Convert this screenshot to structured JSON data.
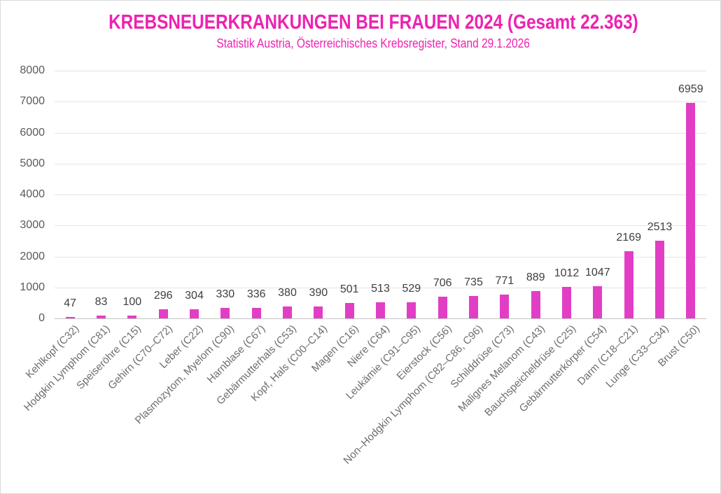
{
  "chart_data": {
    "type": "bar",
    "title": "KREBSNEUERKRANKUNGEN BEI FRAUEN 2024 (Gesamt 22.363)",
    "subtitle": "Statistik Austria, Österreichisches Krebsregister, Stand 29.1.2026",
    "categories": [
      "Kehlkopf (C32)",
      "Hodgkin Lymphom (C81)",
      "Speiseröhre (C15)",
      "Gehirn (C70–C72)",
      "Leber (C22)",
      "Plasmozytom, Myelom (C90)",
      "Harnblase (C67)",
      "Gebärmutterhals (C53)",
      "Kopf, Hals (C00–C14)",
      "Magen (C16)",
      "Niere (C64)",
      "Leukämie (C91–C95)",
      "Eierstock (C56)",
      "Non–Hodgkin Lymphom (C82–C86, C96)",
      "Schilddrüse (C73)",
      "Malignes Melanom (C43)",
      "Bauchspeicheldrüse (C25)",
      "Gebärmutterkörper (C54)",
      "Darm (C18–C21)",
      "Lunge (C33–C34)",
      "Brust (C50)"
    ],
    "values": [
      47,
      83,
      100,
      296,
      304,
      330,
      336,
      380,
      390,
      501,
      513,
      529,
      706,
      735,
      771,
      889,
      1012,
      1047,
      2169,
      2513,
      6959
    ],
    "xlabel": "",
    "ylabel": "",
    "ylim": [
      0,
      8000
    ],
    "ytick_step": 1000,
    "grid": true,
    "legend": "none",
    "bar_value_labels_shown": true,
    "colors": {
      "title": "#ed22b1",
      "subtitle": "#ed22b1",
      "bar": "#e23ec5",
      "value_label": "#3e3e3e",
      "axis_tick_label": "#5a5a5a",
      "category_label": "#6d6d6d",
      "gridline": "#e4e4e4",
      "axis_line": "#c4c4c4",
      "frame_border": "#d9d9d9"
    }
  }
}
